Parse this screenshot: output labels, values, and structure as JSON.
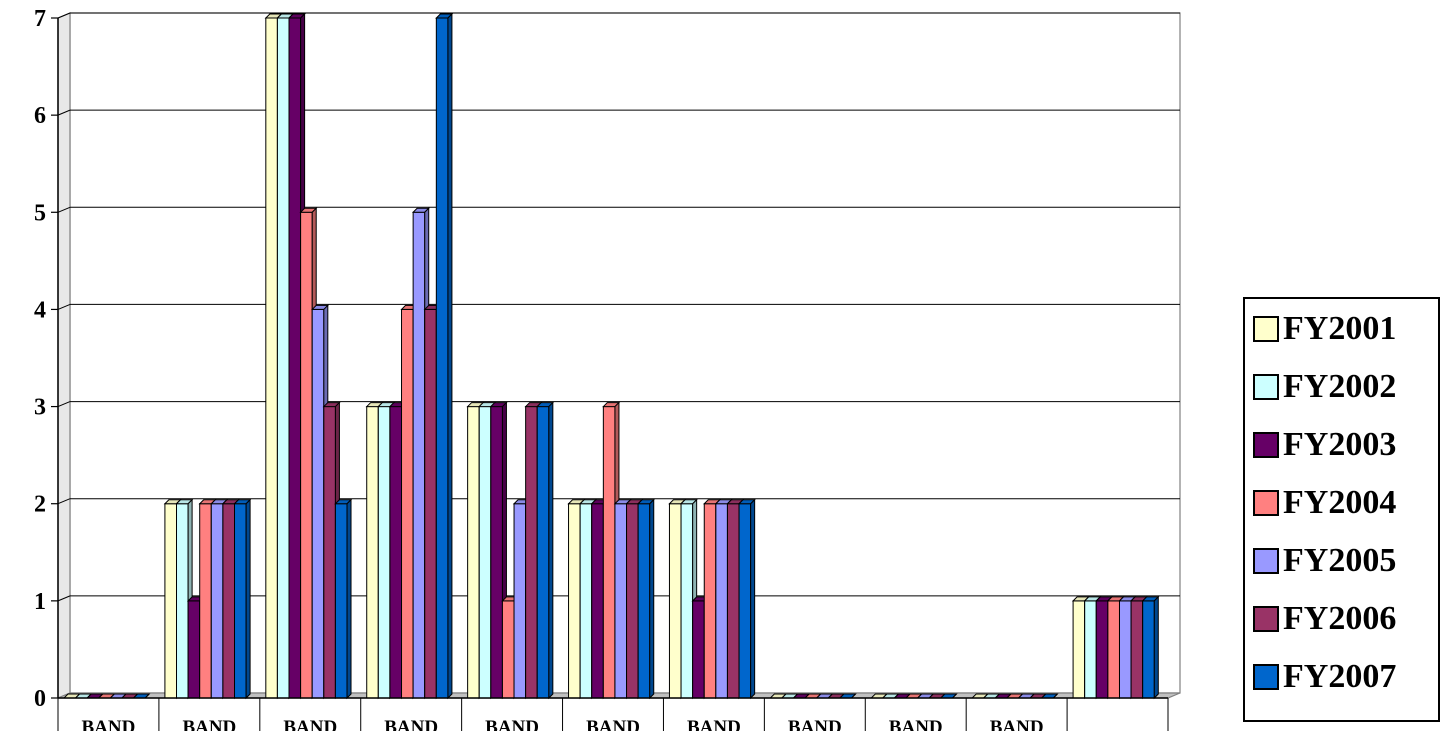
{
  "chart_data": {
    "type": "bar",
    "title": "",
    "xlabel": "",
    "ylabel": "",
    "ylim": [
      0,
      7
    ],
    "yticks": [
      0,
      1,
      2,
      3,
      4,
      5,
      6,
      7
    ],
    "grid": true,
    "legend_position": "right",
    "categories": [
      "BAND",
      "BAND",
      "BAND",
      "BAND",
      "BAND",
      "BAND",
      "BAND",
      "BAND",
      "BAND",
      "BAND",
      ""
    ],
    "series": [
      {
        "name": "FY2001",
        "color": "#FFFFCC",
        "values": [
          0,
          2,
          7,
          3,
          3,
          2,
          2,
          0,
          0,
          0,
          1
        ]
      },
      {
        "name": "FY2002",
        "color": "#CCFFFF",
        "values": [
          0,
          2,
          7,
          3,
          3,
          2,
          2,
          0,
          0,
          0,
          1
        ]
      },
      {
        "name": "FY2003",
        "color": "#660066",
        "values": [
          0,
          1,
          7,
          3,
          3,
          2,
          1,
          0,
          0,
          0,
          1
        ]
      },
      {
        "name": "FY2004",
        "color": "#FF8080",
        "values": [
          0,
          2,
          5,
          4,
          1,
          3,
          2,
          0,
          0,
          0,
          1
        ]
      },
      {
        "name": "FY2005",
        "color": "#9999FF",
        "values": [
          0,
          2,
          4,
          5,
          2,
          2,
          2,
          0,
          0,
          0,
          1
        ]
      },
      {
        "name": "FY2006",
        "color": "#993366",
        "values": [
          0,
          2,
          3,
          4,
          3,
          2,
          2,
          0,
          0,
          0,
          1
        ]
      },
      {
        "name": "FY2007",
        "color": "#0066CC",
        "values": [
          0,
          2,
          2,
          7,
          3,
          2,
          2,
          0,
          0,
          0,
          1
        ]
      }
    ]
  }
}
